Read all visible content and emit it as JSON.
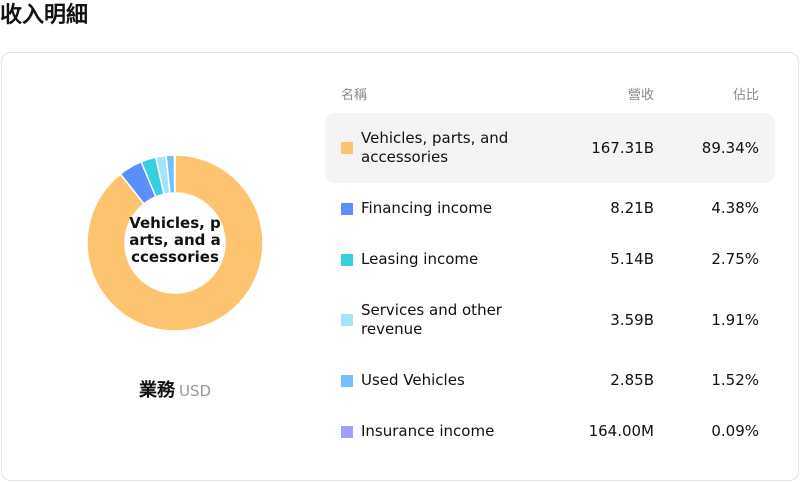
{
  "chart_data": {
    "type": "pie",
    "title": "收入明細",
    "category_header": "名稱",
    "categories": [
      "Vehicles, parts, and accessories",
      "Financing income",
      "Leasing income",
      "Services and other revenue",
      "Used Vehicles",
      "Insurance income"
    ],
    "colors": [
      "#fdc470",
      "#5b8ff9",
      "#36cfe0",
      "#a5e3f7",
      "#74c0f7",
      "#a29ef9"
    ],
    "series": [
      {
        "name": "營收",
        "values": [
          167310000000,
          8210000000,
          5140000000,
          3590000000,
          2850000000,
          164000000
        ],
        "value_labels": [
          "167.31B",
          "8.21B",
          "5.14B",
          "3.59B",
          "2.85B",
          "164.00M"
        ]
      },
      {
        "name": "佔比",
        "values": [
          89.34,
          4.38,
          2.75,
          1.91,
          1.52,
          0.09
        ],
        "value_labels": [
          "89.34%",
          "4.38%",
          "2.75%",
          "1.91%",
          "1.52%",
          "0.09%"
        ]
      }
    ],
    "label": "業務",
    "unit": "USD"
  }
}
